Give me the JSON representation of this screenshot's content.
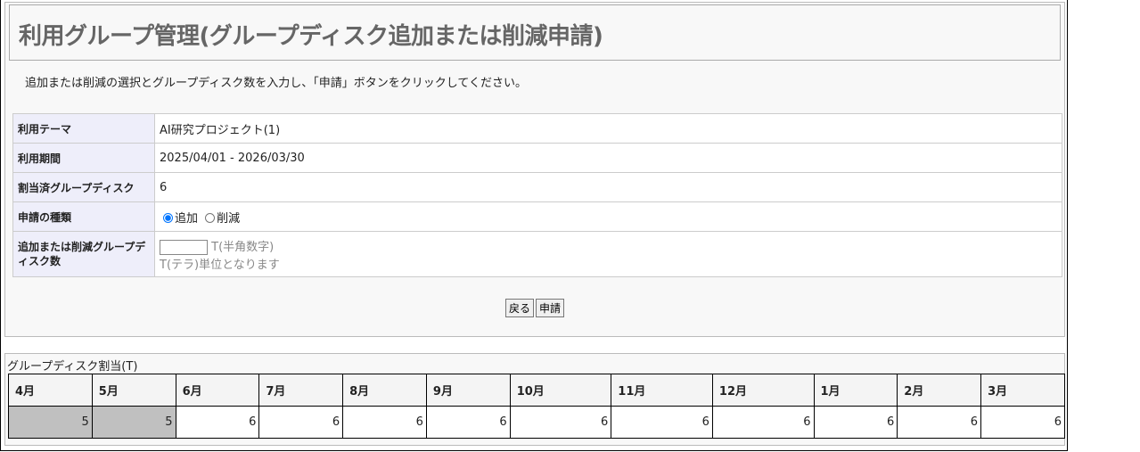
{
  "title": "利用グループ管理(グループディスク追加または削減申請)",
  "instruction": "追加または削減の選択とグループディスク数を入力し、「申請」ボタンをクリックしてください。",
  "form": {
    "theme_label": "利用テーマ",
    "theme_value": "AI研究プロジェクト(1)",
    "period_label": "利用期間",
    "period_value": "2025/04/01 - 2026/03/30",
    "allocated_label": "割当済グループディスク",
    "allocated_value": "6",
    "type_label": "申請の種類",
    "type_add": "追加",
    "type_reduce": "削減",
    "type_selected": "追加",
    "amount_label": "追加または削減グループディスク数",
    "amount_value": "",
    "amount_unit": "T(半角数字)",
    "amount_note": "T(テラ)単位となります"
  },
  "buttons": {
    "back": "戻る",
    "apply": "申請"
  },
  "allocation": {
    "title": "グループディスク割当(T)",
    "months": [
      "4月",
      "5月",
      "6月",
      "7月",
      "8月",
      "9月",
      "10月",
      "11月",
      "12月",
      "1月",
      "2月",
      "3月"
    ],
    "values": [
      "5",
      "5",
      "6",
      "6",
      "6",
      "6",
      "6",
      "6",
      "6",
      "6",
      "6",
      "6"
    ],
    "past_count": 2
  }
}
